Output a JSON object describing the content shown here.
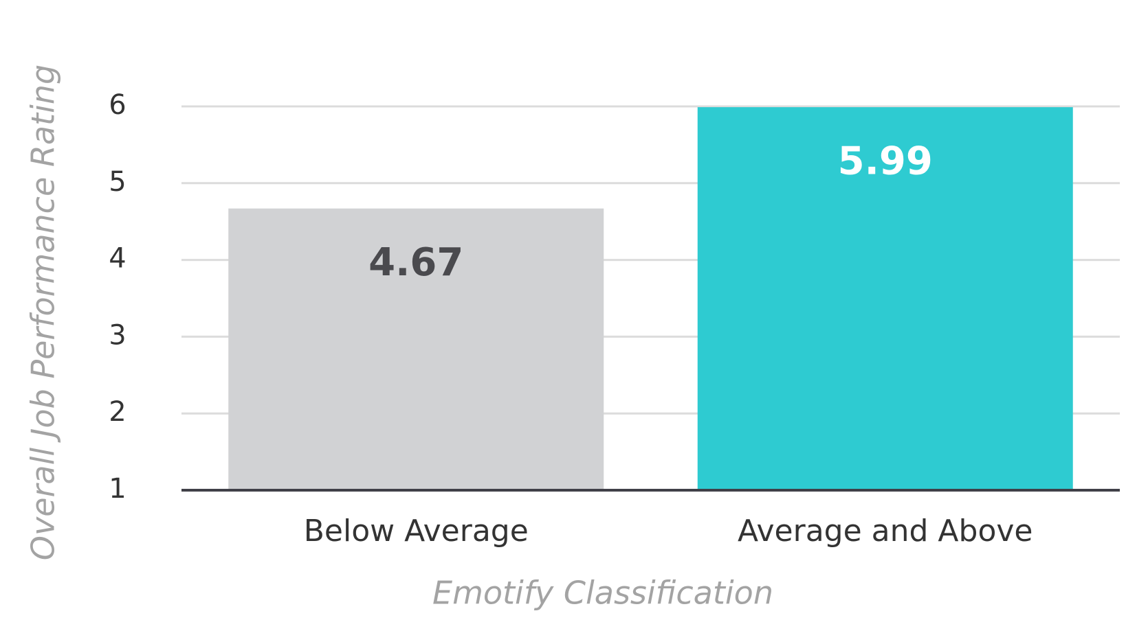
{
  "chart_data": {
    "type": "bar",
    "x_label": "Emotify Classification",
    "y_label": "Overall Job Performance Rating",
    "categories": [
      "Below Average",
      "Average and Above"
    ],
    "values": [
      4.67,
      5.99
    ],
    "colors": [
      "#d1d2d4",
      "#2ecbd1"
    ],
    "ylim": [
      1,
      6
    ],
    "yticks": [
      1,
      2,
      3,
      4,
      5,
      6
    ],
    "grid": true
  }
}
